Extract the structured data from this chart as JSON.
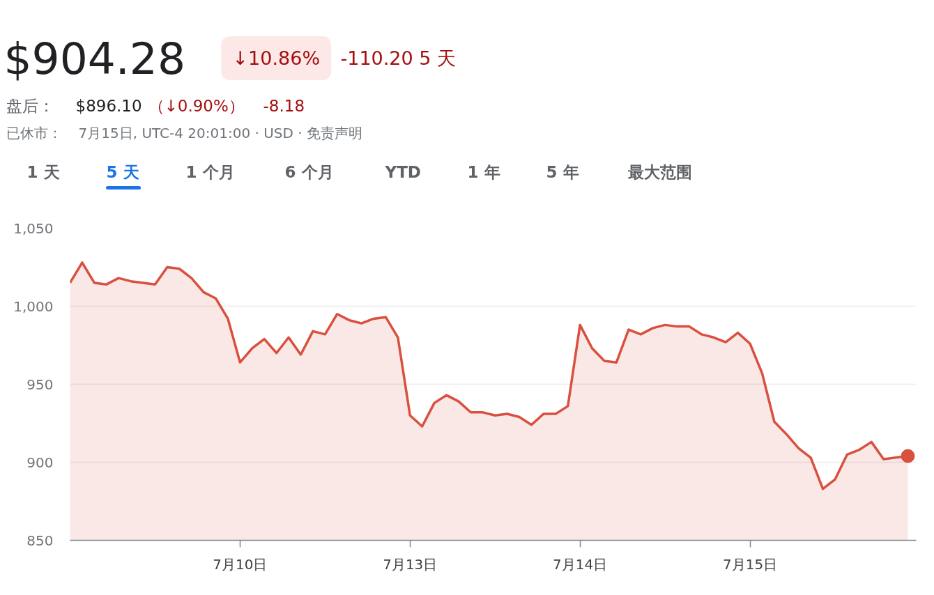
{
  "chart_data": {
    "type": "area",
    "title": "$904.28",
    "annotations": [
      "↓10.86%",
      "-110.20 5 天",
      "盘后：",
      "$896.10",
      "（↓0.90%）",
      "-8.18",
      "已休市：",
      "7月15日, UTC-4 20:01:00 · USD · 免责声明",
      "1 天",
      "5 天",
      "1 个月",
      "6 个月",
      "YTD",
      "1 年",
      "5 年",
      "最大范围"
    ],
    "categories": [
      null,
      null,
      null,
      null,
      null,
      null,
      null,
      null,
      null,
      null,
      null,
      null,
      null,
      null,
      "7月10日",
      null,
      null,
      null,
      null,
      null,
      null,
      null,
      null,
      null,
      null,
      null,
      null,
      null,
      "7月13日",
      null,
      null,
      null,
      null,
      null,
      null,
      null,
      null,
      null,
      null,
      null,
      null,
      null,
      "7月14日",
      null,
      null,
      null,
      null,
      null,
      null,
      null,
      null,
      null,
      null,
      null,
      null,
      null,
      "7月15日",
      null,
      null,
      null,
      null,
      null,
      null,
      null,
      null,
      null,
      null,
      null,
      null,
      null
    ],
    "ylim": [
      850,
      1050
    ],
    "yticks": [
      850,
      900,
      950,
      {
        "value": 1000,
        "label": "1,000"
      },
      {
        "value": 1050,
        "label": "1,050"
      }
    ],
    "grid": "y",
    "line_style": "solid",
    "series": [
      {
        "color": "#d9503f",
        "values": [
          1015,
          1028,
          1015,
          1014,
          1018,
          1016,
          1015,
          1014,
          1025,
          1024,
          1018,
          1009,
          1005,
          992,
          964,
          973,
          979,
          970,
          980,
          969,
          984,
          982,
          995,
          991,
          989,
          992,
          993,
          980,
          930,
          923,
          938,
          943,
          939,
          932,
          932,
          930,
          931,
          929,
          924,
          931,
          931,
          936,
          988,
          973,
          965,
          964,
          985,
          982,
          986,
          988,
          987,
          987,
          982,
          980,
          977,
          983,
          976,
          957,
          926,
          918,
          909,
          903,
          883,
          889,
          905,
          908,
          913,
          902,
          903,
          904
        ]
      },
      {
        "type": "scatter",
        "marker": "circle",
        "color": "#d9503f",
        "values": [
          null,
          null,
          null,
          null,
          null,
          null,
          null,
          null,
          null,
          null,
          null,
          null,
          null,
          null,
          null,
          null,
          null,
          null,
          null,
          null,
          null,
          null,
          null,
          null,
          null,
          null,
          null,
          null,
          null,
          null,
          null,
          null,
          null,
          null,
          null,
          null,
          null,
          null,
          null,
          null,
          null,
          null,
          null,
          null,
          null,
          null,
          null,
          null,
          null,
          null,
          null,
          null,
          null,
          null,
          null,
          null,
          null,
          null,
          null,
          null,
          null,
          null,
          null,
          null,
          null,
          null,
          null,
          null,
          null,
          904
        ]
      }
    ]
  }
}
